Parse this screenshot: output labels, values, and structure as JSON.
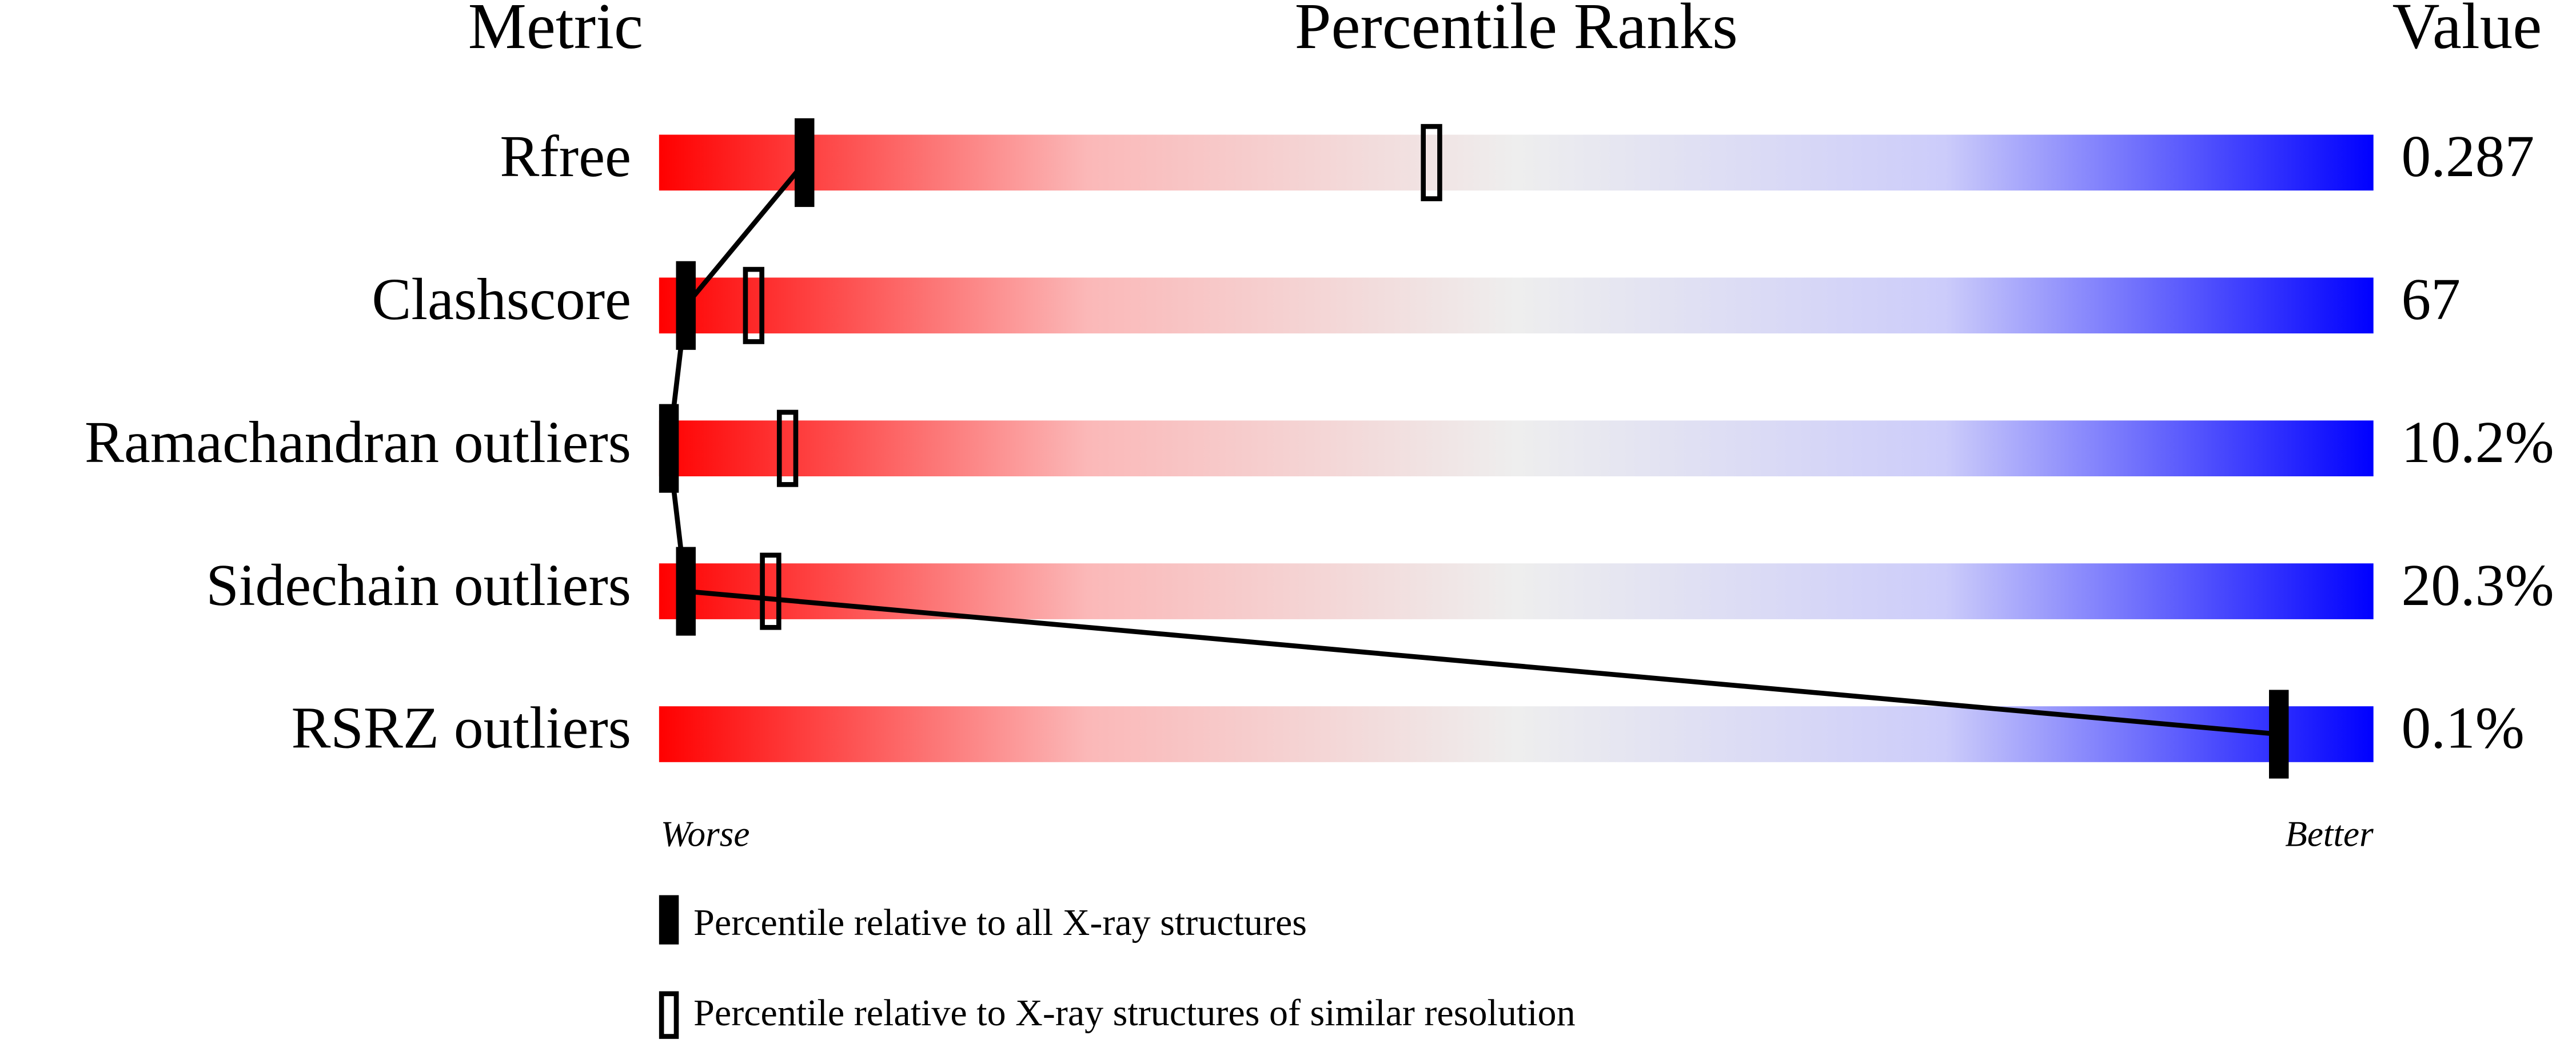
{
  "chart_data": {
    "type": "percentile-slider",
    "headers": {
      "metric": "Metric",
      "ranks": "Percentile Ranks",
      "value": "Value"
    },
    "categories": [
      "Rfree",
      "Clashscore",
      "Ramachandran outliers",
      "Sidechain outliers",
      "RSRZ outliers"
    ],
    "metric_values": [
      "0.287",
      "67",
      "10.2%",
      "20.3%",
      "0.1%"
    ],
    "series": [
      {
        "name": "Percentile relative to all X-ray structures",
        "color": "#000000",
        "values": [
          8,
          1,
          0,
          1,
          95
        ]
      },
      {
        "name": "Percentile relative to X-ray structures of similar resolution",
        "color": "#000000",
        "values": [
          45,
          5,
          7,
          6,
          null
        ]
      }
    ],
    "xlim": [
      0,
      100
    ],
    "low_label": "Worse",
    "high_label": "Better"
  }
}
